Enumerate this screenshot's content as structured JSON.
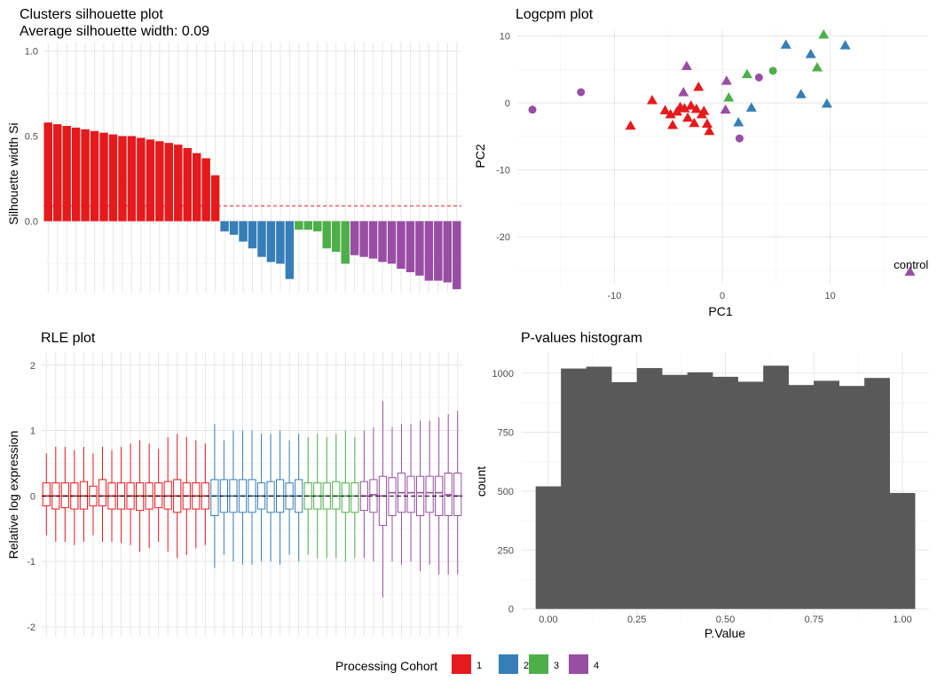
{
  "colors": {
    "cohort1": "#E41A1C",
    "cohort2": "#377EB8",
    "cohort3": "#4DAF4A",
    "cohort4": "#984EA3",
    "hist_fill": "#595959"
  },
  "legend": {
    "title": "Processing Cohort",
    "items": [
      "1",
      "2",
      "3",
      "4"
    ]
  },
  "chart_data": [
    {
      "type": "bar",
      "title": "Clusters silhouette plot\n Average silhouette width: 0.09",
      "ylabel": "Silhouette width Si",
      "xlabel": "",
      "ylim": [
        -0.42,
        1.05
      ],
      "yticks": [
        "0.0",
        "0.5",
        "1.0"
      ],
      "ytick_values": [
        0,
        0.5,
        1
      ],
      "average": 0.09,
      "grid": true,
      "series": [
        {
          "name": "1",
          "values": [
            0.58,
            0.57,
            0.56,
            0.55,
            0.54,
            0.53,
            0.52,
            0.51,
            0.5,
            0.5,
            0.49,
            0.48,
            0.47,
            0.46,
            0.45,
            0.43,
            0.4,
            0.37,
            0.27
          ]
        },
        {
          "name": "2",
          "values": [
            -0.06,
            -0.08,
            -0.12,
            -0.16,
            -0.21,
            -0.24,
            -0.25,
            -0.34
          ]
        },
        {
          "name": "3",
          "values": [
            -0.05,
            -0.05,
            -0.06,
            -0.16,
            -0.18,
            -0.25
          ]
        },
        {
          "name": "4",
          "values": [
            -0.2,
            -0.21,
            -0.22,
            -0.24,
            -0.25,
            -0.28,
            -0.3,
            -0.32,
            -0.35,
            -0.35,
            -0.36,
            -0.4
          ]
        }
      ]
    },
    {
      "type": "scatter",
      "title": "Logcpm plot",
      "xlabel": "PC1",
      "ylabel": "PC2",
      "xlim": [
        -19,
        19
      ],
      "ylim": [
        -27,
        11
      ],
      "xticks": [
        -10,
        0,
        10
      ],
      "yticks": [
        -20,
        -10,
        0,
        10
      ],
      "annotation": {
        "text": "control",
        "x": 17.5,
        "y": -24.2
      },
      "series": [
        {
          "name": "1",
          "shape": "triangle",
          "points": [
            [
              -8.5,
              -3.4
            ],
            [
              -6.5,
              0.4
            ],
            [
              -5.3,
              -1.1
            ],
            [
              -4.8,
              -1.7
            ],
            [
              -4.6,
              -3.3
            ],
            [
              -4.2,
              -1.3
            ],
            [
              -3.9,
              -0.6
            ],
            [
              -3.5,
              -0.8
            ],
            [
              -3.2,
              -2.2
            ],
            [
              -2.9,
              -0.4
            ],
            [
              -2.6,
              -3.0
            ],
            [
              -2.4,
              -0.9
            ],
            [
              -2.2,
              2.4
            ],
            [
              -1.7,
              -1.2
            ],
            [
              -1.4,
              -3.1
            ],
            [
              -1.2,
              -4.2
            ],
            [
              -1.9,
              -1.7
            ]
          ]
        },
        {
          "name": "2",
          "shape": "triangle",
          "points": [
            [
              1.5,
              -2.9
            ],
            [
              2.7,
              -0.7
            ],
            [
              5.9,
              8.7
            ],
            [
              7.3,
              1.3
            ],
            [
              8.2,
              7.3
            ],
            [
              9.7,
              -0.1
            ],
            [
              11.4,
              8.6
            ]
          ]
        },
        {
          "name": "3",
          "shape": "triangle",
          "points": [
            [
              0.6,
              0.8
            ],
            [
              2.3,
              4.3
            ],
            [
              8.8,
              5.3
            ],
            [
              9.4,
              10.2
            ]
          ]
        },
        {
          "name": "4",
          "shape": "triangle",
          "points": [
            [
              -3.3,
              5.5
            ],
            [
              -3.6,
              1.6
            ],
            [
              0.3,
              -1.0
            ],
            [
              0.4,
              3.3
            ],
            [
              17.4,
              -25.2
            ]
          ]
        },
        {
          "name": "4",
          "shape": "circle",
          "points": [
            [
              -17.6,
              -1.0
            ],
            [
              -13.1,
              1.6
            ],
            [
              1.6,
              -5.3
            ],
            [
              3.4,
              3.8
            ]
          ]
        },
        {
          "name": "3",
          "shape": "circle",
          "points": [
            [
              4.7,
              4.8
            ]
          ]
        }
      ]
    },
    {
      "type": "box",
      "title": "RLE plot",
      "ylabel": "Relative log expression",
      "xlabel": "",
      "ylim": [
        -2.15,
        2.2
      ],
      "yticks": [
        -2,
        -1,
        0,
        1,
        2
      ],
      "grid": true,
      "series": [
        {
          "name": "1",
          "boxes": [
            [
              -0.6,
              -0.15,
              0.0,
              0.2,
              0.65
            ],
            [
              -0.7,
              -0.2,
              0.0,
              0.2,
              0.75
            ],
            [
              -0.7,
              -0.18,
              0.0,
              0.2,
              0.75
            ],
            [
              -0.75,
              -0.2,
              0.0,
              0.2,
              0.7
            ],
            [
              -0.7,
              -0.2,
              0.0,
              0.22,
              0.75
            ],
            [
              -0.6,
              -0.15,
              0.0,
              0.15,
              0.65
            ],
            [
              -0.7,
              -0.15,
              0.0,
              0.25,
              0.75
            ],
            [
              -0.7,
              -0.2,
              0.0,
              0.2,
              0.7
            ],
            [
              -0.72,
              -0.2,
              0.0,
              0.2,
              0.75
            ],
            [
              -0.75,
              -0.2,
              0.0,
              0.2,
              0.8
            ],
            [
              -0.85,
              -0.22,
              0.0,
              0.2,
              0.85
            ],
            [
              -0.8,
              -0.2,
              0.0,
              0.2,
              0.8
            ],
            [
              -0.7,
              -0.18,
              0.0,
              0.2,
              0.72
            ],
            [
              -0.85,
              -0.2,
              0.0,
              0.22,
              0.9
            ],
            [
              -0.95,
              -0.25,
              0.0,
              0.25,
              0.95
            ],
            [
              -0.9,
              -0.2,
              0.0,
              0.2,
              0.9
            ],
            [
              -0.8,
              -0.2,
              0.0,
              0.2,
              0.85
            ],
            [
              -0.75,
              -0.2,
              0.0,
              0.2,
              0.8
            ]
          ]
        },
        {
          "name": "2",
          "boxes": [
            [
              -1.1,
              -0.3,
              0.0,
              0.25,
              1.1
            ],
            [
              -0.9,
              -0.25,
              0.0,
              0.25,
              0.85
            ],
            [
              -1.0,
              -0.25,
              0.0,
              0.25,
              1.0
            ],
            [
              -1.05,
              -0.25,
              0.0,
              0.25,
              1.0
            ],
            [
              -1.05,
              -0.25,
              0.0,
              0.25,
              1.0
            ],
            [
              -1.0,
              -0.2,
              0.0,
              0.2,
              0.95
            ],
            [
              -1.0,
              -0.25,
              0.0,
              0.22,
              0.95
            ],
            [
              -1.05,
              -0.25,
              0.0,
              0.25,
              1.0
            ],
            [
              -0.9,
              -0.2,
              0.0,
              0.2,
              0.85
            ],
            [
              -1.0,
              -0.25,
              0.0,
              0.25,
              0.95
            ]
          ]
        },
        {
          "name": "3",
          "boxes": [
            [
              -0.9,
              -0.2,
              0.0,
              0.2,
              0.9
            ],
            [
              -0.95,
              -0.2,
              0.0,
              0.2,
              0.95
            ],
            [
              -0.95,
              -0.2,
              0.0,
              0.2,
              0.9
            ],
            [
              -0.95,
              -0.2,
              0.0,
              0.22,
              0.95
            ],
            [
              -1.0,
              -0.25,
              0.0,
              0.2,
              1.0
            ],
            [
              -0.95,
              -0.25,
              0.0,
              0.2,
              0.9
            ]
          ]
        },
        {
          "name": "4",
          "boxes": [
            [
              -0.95,
              -0.22,
              0.0,
              0.22,
              1.0
            ],
            [
              -1.0,
              -0.25,
              0.02,
              0.25,
              1.05
            ],
            [
              -1.55,
              -0.45,
              0.0,
              0.3,
              1.45
            ],
            [
              -1.0,
              -0.3,
              0.05,
              0.28,
              1.05
            ],
            [
              -1.05,
              -0.25,
              0.05,
              0.35,
              1.1
            ],
            [
              -1.0,
              -0.25,
              0.05,
              0.3,
              1.1
            ],
            [
              -1.15,
              -0.3,
              0.05,
              0.3,
              1.15
            ],
            [
              -1.05,
              -0.25,
              0.05,
              0.3,
              1.15
            ],
            [
              -1.2,
              -0.3,
              0.05,
              0.3,
              1.2
            ],
            [
              -1.2,
              -0.3,
              0.02,
              0.35,
              1.25
            ],
            [
              -1.2,
              -0.3,
              0.0,
              0.35,
              1.3
            ]
          ]
        }
      ]
    },
    {
      "type": "bar",
      "title": "P-values histogram",
      "xlabel": "P.Value",
      "ylabel": "count",
      "xlim": [
        -0.075,
        1.075
      ],
      "ylim": [
        -50,
        1090
      ],
      "xticks": [
        "0.00",
        "0.25",
        "0.50",
        "0.75",
        "1.00"
      ],
      "xtick_values": [
        0,
        0.25,
        0.5,
        0.75,
        1
      ],
      "yticks": [
        "0",
        "250",
        "500",
        "750",
        "1000"
      ],
      "ytick_values": [
        0,
        250,
        500,
        750,
        1000
      ],
      "binwidth": 0.0714,
      "bin_start": -0.0357,
      "counts": [
        520,
        1020,
        1028,
        962,
        1022,
        993,
        1004,
        985,
        964,
        1032,
        950,
        968,
        946,
        980,
        492
      ]
    }
  ]
}
